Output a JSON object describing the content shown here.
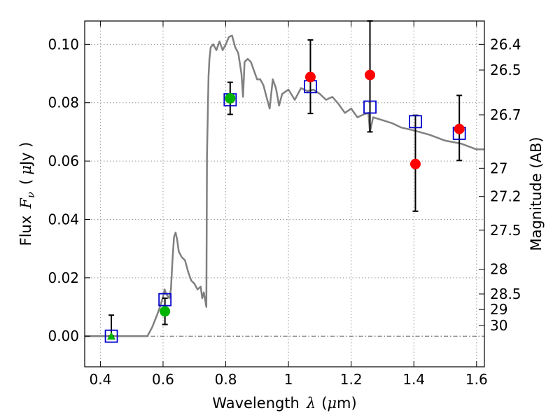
{
  "chart_data": {
    "type": "scatter",
    "xlabel": "Wavelength",
    "xlabel_symbol": "λ",
    "xlabel_unit_open": "(",
    "xlabel_unit_mu": "μ",
    "xlabel_unit_rest": "m)",
    "ylabel": "Flux",
    "ylabel_symbol": "F",
    "ylabel_symbol_sub": "ν",
    "ylabel_unit_open": "(",
    "ylabel_unit_mu": "μ",
    "ylabel_unit_rest": "Jy )",
    "y2label": "Magnitude (AB)",
    "xlim": [
      0.35,
      1.625
    ],
    "ylim": [
      -0.0105,
      0.108
    ],
    "grid": true,
    "x_ticks": [
      {
        "value": 0.4,
        "label": "0.4"
      },
      {
        "value": 0.6,
        "label": "0.6"
      },
      {
        "value": 0.8,
        "label": "0.8"
      },
      {
        "value": 1.0,
        "label": "1"
      },
      {
        "value": 1.2,
        "label": "1.2"
      },
      {
        "value": 1.4,
        "label": "1.4"
      },
      {
        "value": 1.6,
        "label": "1.6"
      }
    ],
    "y_ticks": [
      {
        "value": 0.0,
        "label": "0.00"
      },
      {
        "value": 0.02,
        "label": "0.02"
      },
      {
        "value": 0.04,
        "label": "0.04"
      },
      {
        "value": 0.06,
        "label": "0.06"
      },
      {
        "value": 0.08,
        "label": "0.08"
      },
      {
        "value": 0.1,
        "label": "0.10"
      }
    ],
    "magnitude_ticks": [
      {
        "value": 26.4,
        "label": "26.4"
      },
      {
        "value": 26.5,
        "label": "26.5"
      },
      {
        "value": 26.7,
        "label": "26.7"
      },
      {
        "value": 27.0,
        "label": "27"
      },
      {
        "value": 27.2,
        "label": "27.2"
      },
      {
        "value": 27.5,
        "label": "27.5"
      },
      {
        "value": 28.0,
        "label": "28"
      },
      {
        "value": 28.5,
        "label": "28.5"
      },
      {
        "value": 29.0,
        "label": "29"
      },
      {
        "value": 30.0,
        "label": "30"
      }
    ],
    "colors": {
      "sed": "#808080",
      "model": "#0000cc",
      "green": "#00b400",
      "red": "#ff0000",
      "errorbar": "#000000",
      "zero_line": "#666666",
      "grid": "#999999"
    },
    "series": [
      {
        "name": "sed_model_spectrum",
        "kind": "line",
        "x": [
          0.35,
          0.55,
          0.565,
          0.58,
          0.59,
          0.6,
          0.605,
          0.61,
          0.62,
          0.625,
          0.63,
          0.635,
          0.64,
          0.645,
          0.65,
          0.66,
          0.67,
          0.68,
          0.69,
          0.7,
          0.71,
          0.72,
          0.725,
          0.73,
          0.735,
          0.738,
          0.74,
          0.745,
          0.748,
          0.752,
          0.76,
          0.77,
          0.78,
          0.79,
          0.8,
          0.81,
          0.82,
          0.83,
          0.84,
          0.85,
          0.855,
          0.86,
          0.87,
          0.88,
          0.89,
          0.9,
          0.91,
          0.92,
          0.93,
          0.94,
          0.95,
          0.96,
          0.97,
          0.98,
          1.0,
          1.02,
          1.04,
          1.06,
          1.08,
          1.1,
          1.12,
          1.14,
          1.16,
          1.18,
          1.2,
          1.22,
          1.24,
          1.255,
          1.26,
          1.27,
          1.3,
          1.33,
          1.36,
          1.4,
          1.45,
          1.5,
          1.55,
          1.6,
          1.625
        ],
        "y": [
          0.0,
          0.0,
          0.003,
          0.007,
          0.01,
          0.0135,
          0.016,
          0.0145,
          0.013,
          0.016,
          0.026,
          0.034,
          0.0355,
          0.033,
          0.029,
          0.027,
          0.026,
          0.022,
          0.019,
          0.018,
          0.016,
          0.017,
          0.013,
          0.015,
          0.012,
          0.01,
          0.062,
          0.089,
          0.095,
          0.099,
          0.1,
          0.098,
          0.101,
          0.098,
          0.1,
          0.1025,
          0.103,
          0.099,
          0.097,
          0.09,
          0.082,
          0.094,
          0.095,
          0.094,
          0.091,
          0.088,
          0.088,
          0.086,
          0.082,
          0.078,
          0.088,
          0.085,
          0.079,
          0.083,
          0.0845,
          0.081,
          0.085,
          0.084,
          0.0845,
          0.083,
          0.081,
          0.082,
          0.0795,
          0.0765,
          0.078,
          0.075,
          0.076,
          0.0765,
          0.07,
          0.075,
          0.074,
          0.073,
          0.0715,
          0.0705,
          0.069,
          0.067,
          0.066,
          0.064,
          0.064
        ]
      },
      {
        "name": "model_band_flux",
        "kind": "open_square",
        "x": [
          0.435,
          0.606,
          0.814,
          1.07,
          1.26,
          1.405,
          1.545
        ],
        "y": [
          0.0,
          0.0125,
          0.081,
          0.0855,
          0.0785,
          0.0735,
          0.0695
        ]
      },
      {
        "name": "observed_green",
        "kind": "filled_circle",
        "x": [
          0.606,
          0.814
        ],
        "y": [
          0.0085,
          0.0815
        ],
        "yerr": [
          0.0045,
          0.0055
        ]
      },
      {
        "name": "observed_green_upper",
        "kind": "filled_triangle",
        "x": [
          0.435
        ],
        "y": [
          0.0
        ],
        "yerr_low": [
          0.0
        ],
        "yerr_high": [
          0.0072
        ]
      },
      {
        "name": "observed_red",
        "kind": "filled_circle",
        "x": [
          1.07,
          1.26,
          1.405,
          1.545
        ],
        "y": [
          0.0888,
          0.0895,
          0.059,
          0.071
        ],
        "yerr_low": [
          0.0125,
          0.0195,
          0.0162,
          0.0108
        ],
        "yerr_high": [
          0.0127,
          0.0195,
          0.0167,
          0.0115
        ]
      }
    ]
  }
}
